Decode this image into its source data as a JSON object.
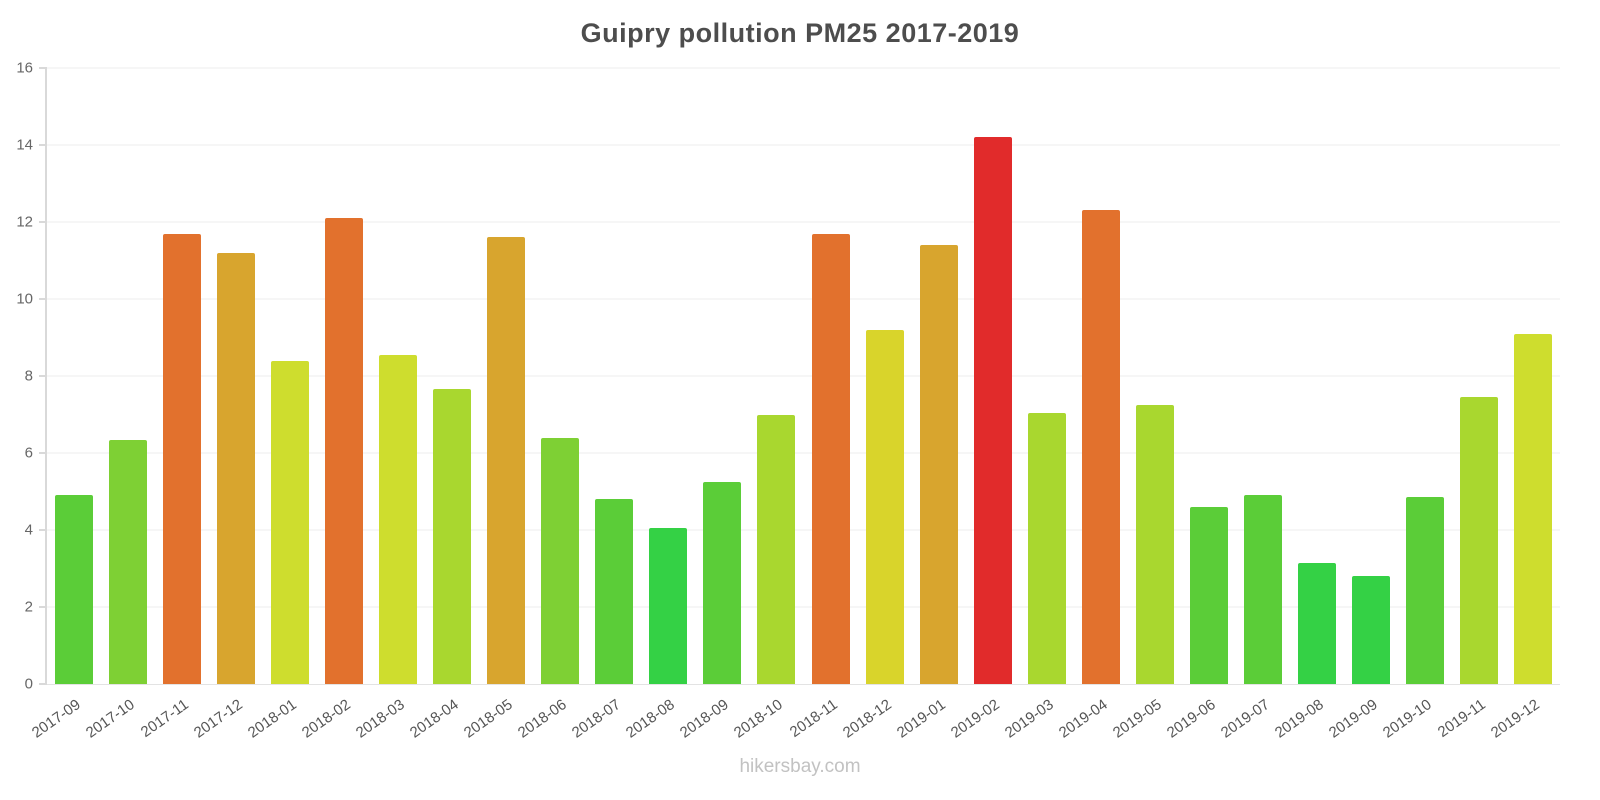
{
  "page": {
    "footer": "hikersbay.com"
  },
  "chart_data": {
    "type": "bar",
    "title": "Guipry pollution PM25 2017-2019",
    "xlabel": "",
    "ylabel": "",
    "ylim": [
      0,
      16
    ],
    "yticks": [
      0,
      2,
      4,
      6,
      8,
      10,
      12,
      14,
      16
    ],
    "grid": true,
    "legend": false,
    "categories": [
      "2017-09",
      "2017-10",
      "2017-11",
      "2017-12",
      "2018-01",
      "2018-02",
      "2018-03",
      "2018-04",
      "2018-05",
      "2018-06",
      "2018-07",
      "2018-08",
      "2018-09",
      "2018-10",
      "2018-11",
      "2018-12",
      "2019-01",
      "2019-02",
      "2019-03",
      "2019-04",
      "2019-05",
      "2019-06",
      "2019-07",
      "2019-08",
      "2019-09",
      "2019-10",
      "2019-11",
      "2019-12"
    ],
    "values": [
      4.9,
      6.35,
      11.7,
      11.2,
      8.4,
      12.1,
      8.55,
      7.65,
      11.6,
      6.4,
      4.8,
      4.05,
      5.25,
      7.0,
      11.7,
      9.2,
      11.4,
      14.2,
      7.05,
      12.3,
      7.25,
      4.6,
      4.9,
      3.15,
      2.8,
      4.85,
      7.45,
      9.1
    ],
    "colors": [
      "#5bcd38",
      "#7ed034",
      "#e2712d",
      "#d8a52e",
      "#cedd2e",
      "#e2712d",
      "#cedd2e",
      "#a9d72f",
      "#d8a52e",
      "#7ed034",
      "#5bcd38",
      "#34d145",
      "#5bcd38",
      "#a9d72f",
      "#e2712d",
      "#d9d42b",
      "#d8a52e",
      "#e12b2b",
      "#a9d72f",
      "#e2712d",
      "#a9d72f",
      "#5bcd38",
      "#5bcd38",
      "#34d145",
      "#34d145",
      "#5bcd38",
      "#a9d72f",
      "#cedd2e"
    ]
  }
}
